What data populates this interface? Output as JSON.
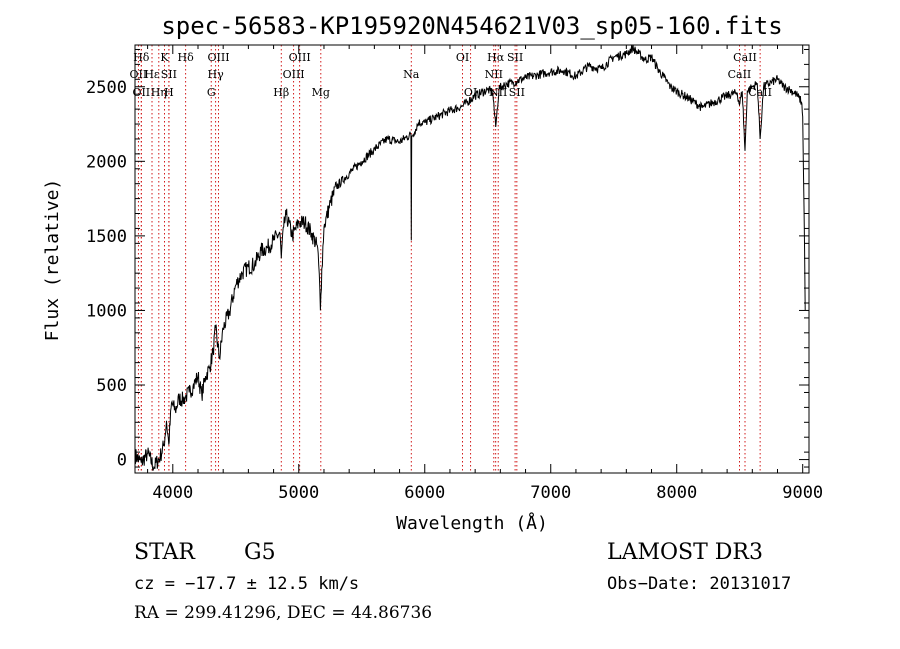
{
  "chart_data": {
    "type": "line",
    "title": "spec-56583-KP195920N454621V03_sp05-160.fits",
    "xlabel": "Wavelength (Å)",
    "ylabel": "Flux (relative)",
    "xlim": [
      3700,
      9050
    ],
    "ylim": [
      -90,
      2780
    ],
    "xticks": [
      4000,
      5000,
      6000,
      7000,
      8000,
      9000
    ],
    "yticks": [
      0,
      500,
      1000,
      1500,
      2000,
      2500
    ],
    "xtick_labels": [
      "4000",
      "5000",
      "6000",
      "7000",
      "8000",
      "9000"
    ],
    "ytick_labels": [
      "0",
      "500",
      "1000",
      "1500",
      "2000",
      "2500"
    ],
    "series": [
      {
        "name": "spectrum",
        "x": [
          3700,
          3750,
          3800,
          3850,
          3900,
          3930,
          3950,
          3968,
          3990,
          4020,
          4050,
          4080,
          4101,
          4130,
          4160,
          4200,
          4230,
          4260,
          4290,
          4320,
          4340,
          4370,
          4400,
          4450,
          4500,
          4550,
          4600,
          4650,
          4700,
          4750,
          4800,
          4850,
          4861,
          4880,
          4900,
          4950,
          5000,
          5050,
          5100,
          5150,
          5167,
          5172,
          5183,
          5200,
          5250,
          5300,
          5400,
          5500,
          5600,
          5700,
          5800,
          5850,
          5890,
          5893,
          5896,
          5920,
          5950,
          6000,
          6100,
          6200,
          6300,
          6400,
          6500,
          6540,
          6563,
          6590,
          6650,
          6700,
          6800,
          6900,
          7000,
          7100,
          7200,
          7300,
          7400,
          7500,
          7600,
          7650,
          7700,
          7750,
          7800,
          7850,
          7900,
          7950,
          8000,
          8100,
          8200,
          8300,
          8400,
          8480,
          8498,
          8520,
          8542,
          8560,
          8600,
          8640,
          8662,
          8690,
          8750,
          8800,
          8850,
          8900,
          8950,
          8990,
          9000,
          9005,
          9010,
          9015,
          9020
        ],
        "y": [
          30,
          -20,
          40,
          -50,
          20,
          100,
          260,
          100,
          380,
          330,
          410,
          400,
          420,
          450,
          490,
          560,
          430,
          560,
          610,
          720,
          880,
          680,
          880,
          990,
          1170,
          1250,
          1290,
          1310,
          1400,
          1420,
          1470,
          1520,
          1350,
          1560,
          1640,
          1500,
          1590,
          1590,
          1520,
          1420,
          1150,
          1000,
          1280,
          1560,
          1720,
          1830,
          1920,
          2000,
          2080,
          2150,
          2130,
          2160,
          2180,
          1470,
          2170,
          2200,
          2260,
          2260,
          2300,
          2340,
          2370,
          2440,
          2480,
          2460,
          2230,
          2490,
          2520,
          2530,
          2560,
          2580,
          2600,
          2610,
          2570,
          2640,
          2620,
          2700,
          2720,
          2760,
          2720,
          2680,
          2700,
          2620,
          2560,
          2500,
          2470,
          2420,
          2360,
          2400,
          2440,
          2460,
          2380,
          2470,
          2070,
          2470,
          2500,
          2520,
          2150,
          2500,
          2530,
          2550,
          2500,
          2480,
          2450,
          2400,
          2300,
          2000,
          1700,
          1400,
          1000
        ]
      }
    ],
    "lines": [
      {
        "label": "Hδ",
        "wave": 3750,
        "row": 0
      },
      {
        "label": "OII",
        "wave": 3727,
        "row": 1
      },
      {
        "label": "OII",
        "wave": 3750,
        "row": 2
      },
      {
        "label": "Hε",
        "wave": 3835,
        "row": 1
      },
      {
        "label": "Hη",
        "wave": 3889,
        "row": 2
      },
      {
        "label": "K",
        "wave": 3934,
        "row": 0
      },
      {
        "label": "SII",
        "wave": 3969,
        "row": 1
      },
      {
        "label": "H",
        "wave": 3969,
        "row": 2
      },
      {
        "label": "Hδ",
        "wave": 4102,
        "row": 0
      },
      {
        "label": "OIII",
        "wave": 4363,
        "row": 0
      },
      {
        "label": "Hγ",
        "wave": 4340,
        "row": 1
      },
      {
        "label": "G",
        "wave": 4305,
        "row": 2
      },
      {
        "label": "Hβ",
        "wave": 4861,
        "row": 2
      },
      {
        "label": "OIII",
        "wave": 4959,
        "row": 1
      },
      {
        "label": "OIII",
        "wave": 5007,
        "row": 0
      },
      {
        "label": "Mg",
        "wave": 5175,
        "row": 2
      },
      {
        "label": "Na",
        "wave": 5893,
        "row": 1
      },
      {
        "label": "OI",
        "wave": 6300,
        "row": 0
      },
      {
        "label": "OI",
        "wave": 6364,
        "row": 2
      },
      {
        "label": "Hα",
        "wave": 6563,
        "row": 0
      },
      {
        "label": "NII",
        "wave": 6548,
        "row": 1
      },
      {
        "label": "NII",
        "wave": 6583,
        "row": 2
      },
      {
        "label": "SII",
        "wave": 6717,
        "row": 0
      },
      {
        "label": "SII",
        "wave": 6731,
        "row": 2
      },
      {
        "label": "CaII",
        "wave": 8542,
        "row": 0
      },
      {
        "label": "CaII",
        "wave": 8498,
        "row": 1
      },
      {
        "label": "CaII",
        "wave": 8662,
        "row": 2
      }
    ]
  },
  "footer": {
    "object_class": "STAR",
    "subclass": "G5",
    "survey": "LAMOST DR3",
    "cz": "cz = −17.7 ± 12.5 km/s",
    "obs_date": "Obs−Date: 20131017",
    "radec": "RA = 299.41296, DEC =  44.86736"
  },
  "colors": {
    "line_marker": "#cc0000",
    "spectrum": "#000000"
  }
}
